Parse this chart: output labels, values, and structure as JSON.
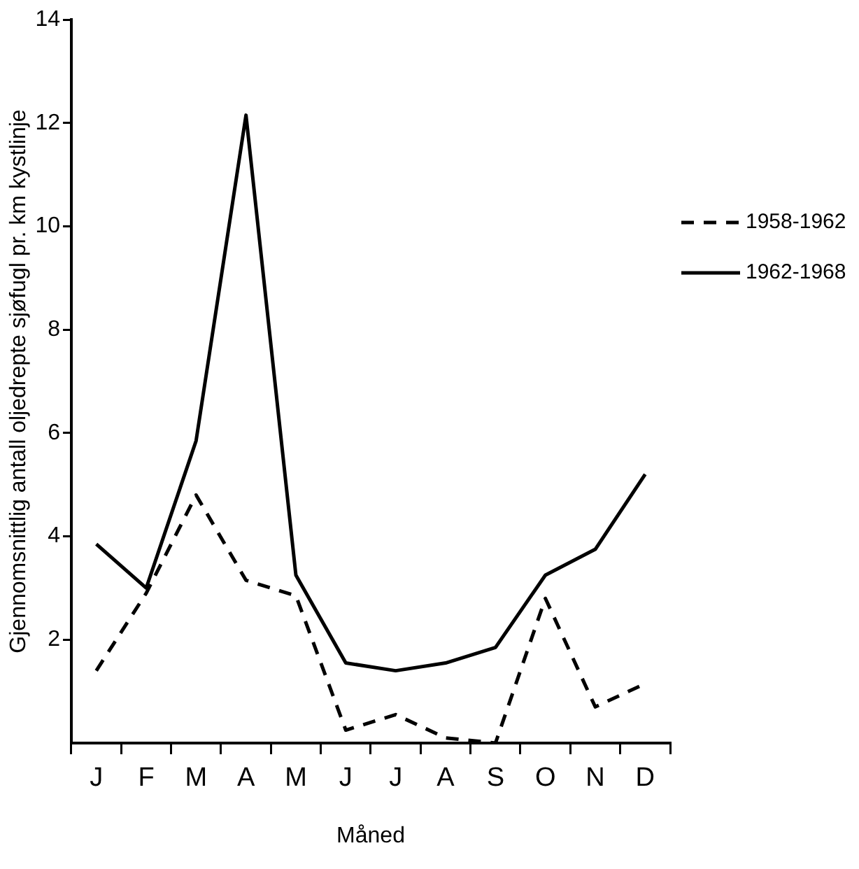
{
  "chart_data": {
    "type": "line",
    "xlabel": "Måned",
    "ylabel": "Gjennomsnittlig antall oljedrepte sjøfugl pr. km kystlinje",
    "categories": [
      "J",
      "F",
      "M",
      "A",
      "M",
      "J",
      "J",
      "A",
      "S",
      "O",
      "N",
      "D"
    ],
    "series": [
      {
        "name": "1958-1962",
        "color": "#000000",
        "line_style": "dashed",
        "values": [
          1.4,
          2.9,
          4.8,
          3.15,
          2.85,
          0.25,
          0.55,
          0.1,
          0.0,
          2.8,
          0.7,
          1.15
        ]
      },
      {
        "name": "1962-1968",
        "color": "#000000",
        "line_style": "solid",
        "values": [
          3.85,
          3.0,
          5.85,
          12.15,
          3.25,
          1.55,
          1.4,
          1.55,
          1.85,
          3.25,
          3.75,
          5.2
        ]
      }
    ],
    "ylim": [
      0,
      14
    ],
    "yticks": [
      2,
      4,
      6,
      8,
      10,
      12,
      14
    ],
    "grid": false,
    "legend": "right",
    "marker": "none"
  }
}
